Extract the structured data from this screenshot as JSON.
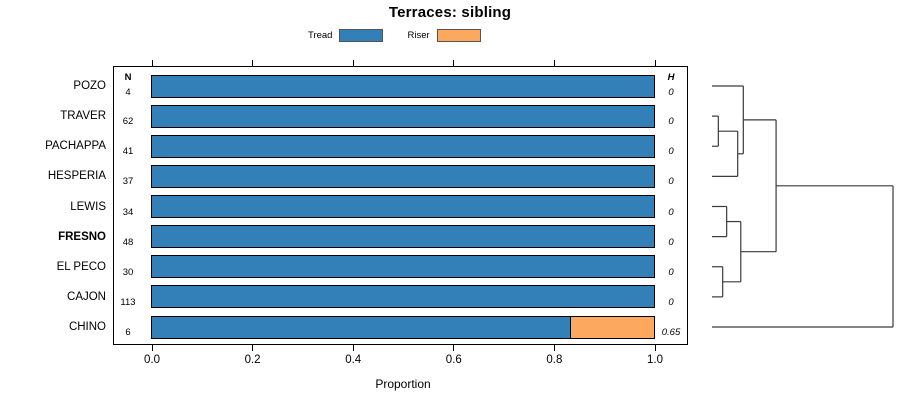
{
  "title": "Terraces: sibling",
  "legend": {
    "items": [
      {
        "label": "Tread",
        "color": "#3380B8"
      },
      {
        "label": "Riser",
        "color": "#FCA85E"
      }
    ]
  },
  "colors": {
    "tread": "#3380B8",
    "riser": "#FCA85E",
    "bar_border": "#000000",
    "frame": "#000000",
    "dendro_line": "#3a3a3a"
  },
  "chart_data": {
    "type": "bar",
    "orientation": "horizontal-stacked",
    "title": "Terraces: sibling",
    "xlabel": "Proportion",
    "xlim": [
      0,
      1
    ],
    "xtick_labels": [
      "0.0",
      "0.2",
      "0.4",
      "0.6",
      "0.8",
      "1.0"
    ],
    "grid": false,
    "legend_position": "top",
    "categories": [
      "POZO",
      "TRAVER",
      "PACHAPPA",
      "HESPERIA",
      "LEWIS",
      "FRESNO",
      "EL PECO",
      "CAJON",
      "CHINO"
    ],
    "emphasized_category": "FRESNO",
    "columns": {
      "n_header": "N",
      "h_header": "H"
    },
    "n_values": [
      4,
      62,
      41,
      37,
      34,
      48,
      30,
      113,
      6
    ],
    "h_values": [
      "0",
      "0",
      "0",
      "0",
      "0",
      "0",
      "0",
      "0",
      "0.65"
    ],
    "series": [
      {
        "name": "Tread",
        "values": [
          1,
          1,
          1,
          1,
          1,
          1,
          1,
          1,
          0.833
        ]
      },
      {
        "name": "Riser",
        "values": [
          0,
          0,
          0,
          0,
          0,
          0,
          0,
          0,
          0.167
        ]
      }
    ],
    "dendrogram": {
      "leaves": [
        "POZO",
        "TRAVER",
        "PACHAPPA",
        "HESPERIA",
        "LEWIS",
        "FRESNO",
        "EL PECO",
        "CAJON",
        "CHINO"
      ],
      "merges": [
        {
          "a": "L1",
          "b": "L2",
          "h": 0.035
        },
        {
          "a": "M0",
          "b": "L3",
          "h": 0.142
        },
        {
          "a": "L0",
          "b": "M1",
          "h": 0.173
        },
        {
          "a": "L4",
          "b": "L5",
          "h": 0.081
        },
        {
          "a": "L6",
          "b": "L7",
          "h": 0.059
        },
        {
          "a": "M3",
          "b": "M4",
          "h": 0.159
        },
        {
          "a": "M2",
          "b": "M5",
          "h": 0.354
        },
        {
          "a": "M6",
          "b": "L8",
          "h": 1.0
        }
      ]
    }
  }
}
